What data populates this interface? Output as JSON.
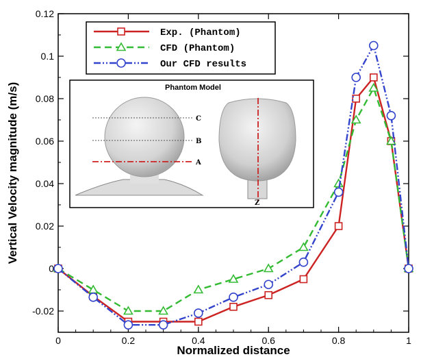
{
  "chart_data": {
    "type": "line",
    "title": "",
    "xlabel": "Normalized distance",
    "ylabel": "Vertical Velocity magnitude (m/s)",
    "xlim": [
      0,
      1
    ],
    "ylim": [
      -0.03,
      0.12
    ],
    "x_ticks": [
      0,
      0.2,
      0.4,
      0.6,
      0.8,
      1
    ],
    "x_tick_labels": [
      "0",
      "0.2",
      "0.4",
      "0.6",
      "0.8",
      "1"
    ],
    "y_ticks": [
      -0.02,
      0,
      0.02,
      0.04,
      0.06,
      0.08,
      0.1,
      0.12
    ],
    "y_tick_labels": [
      "-0.02",
      "0",
      "0.02",
      "0.04",
      "0.06",
      "0.08",
      "0.1",
      "0.12"
    ],
    "grid": false,
    "legend_position": "top-left",
    "series": [
      {
        "name": "Exp. (Phantom)",
        "color": "#cc2222",
        "line_style": "solid",
        "marker": "square",
        "x": [
          0,
          0.1,
          0.2,
          0.3,
          0.4,
          0.5,
          0.6,
          0.7,
          0.8,
          0.85,
          0.9,
          0.95,
          1.0
        ],
        "y": [
          0,
          -0.013,
          -0.025,
          -0.025,
          -0.025,
          -0.018,
          -0.0125,
          -0.005,
          0.02,
          0.08,
          0.09,
          0.06,
          0
        ]
      },
      {
        "name": "CFD (Phantom)",
        "color": "#33bb33",
        "line_style": "dashed",
        "marker": "triangle",
        "x": [
          0,
          0.1,
          0.2,
          0.3,
          0.4,
          0.5,
          0.6,
          0.7,
          0.8,
          0.85,
          0.9,
          0.95,
          1.0
        ],
        "y": [
          0,
          -0.01,
          -0.02,
          -0.02,
          -0.01,
          -0.005,
          0,
          0.01,
          0.04,
          0.07,
          0.085,
          0.06,
          0
        ]
      },
      {
        "name": "Our CFD results",
        "color": "#3344cc",
        "line_style": "dashdotdot",
        "marker": "circle",
        "x": [
          0,
          0.1,
          0.2,
          0.3,
          0.4,
          0.5,
          0.6,
          0.7,
          0.8,
          0.85,
          0.9,
          0.95,
          1.0
        ],
        "y": [
          0,
          -0.0135,
          -0.0265,
          -0.0265,
          -0.021,
          -0.0135,
          -0.0075,
          0.003,
          0.036,
          0.09,
          0.105,
          0.072,
          0
        ]
      }
    ],
    "inset": {
      "title": "Phantom Model",
      "labels": [
        "C",
        "B",
        "A",
        "Z"
      ]
    }
  }
}
